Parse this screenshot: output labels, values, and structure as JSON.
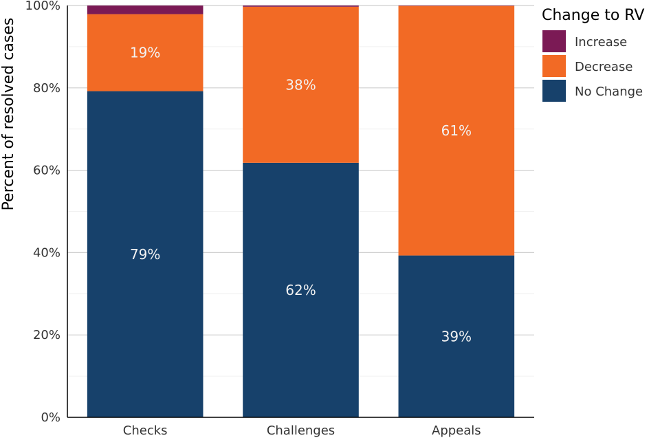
{
  "chart_data": {
    "type": "bar",
    "stacked": true,
    "percent": true,
    "categories": [
      "Checks",
      "Challenges",
      "Appeals"
    ],
    "series": [
      {
        "name": "No Change",
        "values": [
          79.2,
          61.8,
          39.3
        ],
        "color": "#17416b",
        "labels": [
          "79%",
          "62%",
          "39%"
        ]
      },
      {
        "name": "Decrease",
        "values": [
          18.7,
          37.9,
          60.6
        ],
        "color": "#f26a25",
        "labels": [
          "19%",
          "38%",
          "61%"
        ]
      },
      {
        "name": "Increase",
        "values": [
          2.1,
          0.3,
          0.1
        ],
        "color": "#7b1a55",
        "labels": [
          "",
          "",
          ""
        ]
      }
    ],
    "ylabel": "Percent of resolved cases",
    "xlabel": "",
    "ylim": [
      0,
      100
    ],
    "yticks": [
      0,
      20,
      40,
      60,
      80,
      100
    ],
    "ytick_labels": [
      "0%",
      "20%",
      "40%",
      "60%",
      "80%",
      "100%"
    ],
    "grid": true,
    "legend": {
      "title": "Change to RV",
      "position": "top-right",
      "items": [
        "Increase",
        "Decrease",
        "No Change"
      ]
    }
  }
}
